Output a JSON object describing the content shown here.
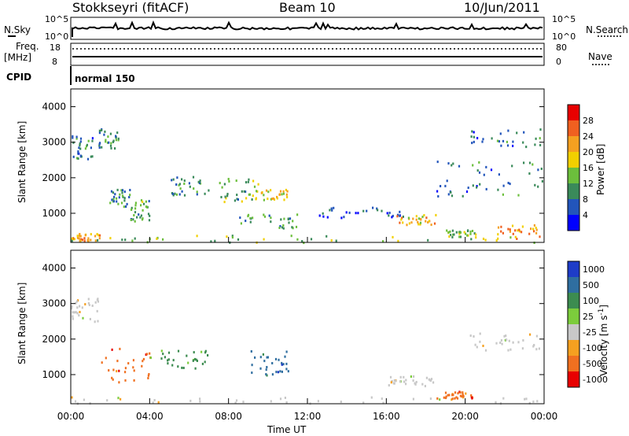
{
  "header": {
    "station": "Stokkseyri (fitACF)",
    "beam": "Beam 10",
    "date": "10/Jun/2011"
  },
  "top_panels": {
    "nsky_label": "N.Sky",
    "nsearch_label": "N.Search",
    "nsky_ticks": [
      "10^5",
      "10^0"
    ],
    "nsky_right_ticks": [
      "10^5",
      "10^0"
    ],
    "freq_label": "Freq.",
    "freq_unit": "[MHz]",
    "freq_ticks": [
      "18",
      "8"
    ],
    "nave_label": "Nave",
    "nave_ticks": [
      "80",
      "0"
    ],
    "cpid_label": "CPID",
    "cpid_value": "normal 150"
  },
  "colors": {
    "power_scale": [
      "#0000ff",
      "#2255bb",
      "#3a8a5a",
      "#6cbf3c",
      "#f2d000",
      "#f5a020",
      "#f06020",
      "#e80000"
    ],
    "velocity_scale": [
      "#1e3cc8",
      "#2f6ea0",
      "#3c8c50",
      "#7ccc3c",
      "#c8c8c8",
      "#f5a020",
      "#f07020",
      "#e80000"
    ]
  },
  "chart_data": [
    {
      "type": "heatmap",
      "title": "Power",
      "ylabel": "Slant Range [km]",
      "ylim": [
        180,
        4500
      ],
      "yticks": [
        "1000",
        "2000",
        "3000",
        "4000"
      ],
      "xlim_hours": [
        0,
        24
      ],
      "colorbar_label": "Power [dB]",
      "colorbar_ticks": [
        "4",
        "8",
        "12",
        "16",
        "20",
        "24",
        "28"
      ],
      "colorbar_range": [
        0,
        32
      ],
      "regions": [
        {
          "t": [
            0.0,
            1.2
          ],
          "r": [
            2500,
            3200
          ],
          "level": 8
        },
        {
          "t": [
            1.4,
            2.4
          ],
          "r": [
            2800,
            3400
          ],
          "level": 10
        },
        {
          "t": [
            0.0,
            24.0
          ],
          "r": [
            200,
            400
          ],
          "level": 14
        },
        {
          "t": [
            0.0,
            1.5
          ],
          "r": [
            250,
            450
          ],
          "level": 22
        },
        {
          "t": [
            1.8,
            3.0
          ],
          "r": [
            1200,
            1700
          ],
          "level": 10
        },
        {
          "t": [
            3.0,
            4.0
          ],
          "r": [
            800,
            1400
          ],
          "level": 12
        },
        {
          "t": [
            5.0,
            7.0
          ],
          "r": [
            1500,
            2100
          ],
          "level": 9
        },
        {
          "t": [
            7.5,
            9.5
          ],
          "r": [
            1300,
            2000
          ],
          "level": 12
        },
        {
          "t": [
            9.0,
            11.0
          ],
          "r": [
            1400,
            1700
          ],
          "level": 18
        },
        {
          "t": [
            8.5,
            11.5
          ],
          "r": [
            600,
            1000
          ],
          "level": 11
        },
        {
          "t": [
            12.5,
            17.0
          ],
          "r": [
            900,
            1200
          ],
          "level": 6
        },
        {
          "t": [
            16.5,
            18.5
          ],
          "r": [
            700,
            1000
          ],
          "level": 20
        },
        {
          "t": [
            18.5,
            24.0
          ],
          "r": [
            1500,
            2500
          ],
          "level": 8
        },
        {
          "t": [
            20.0,
            24.0
          ],
          "r": [
            2900,
            3400
          ],
          "level": 8
        },
        {
          "t": [
            19.0,
            20.5
          ],
          "r": [
            350,
            550
          ],
          "level": 14
        },
        {
          "t": [
            21.5,
            24.0
          ],
          "r": [
            300,
            700
          ],
          "level": 22
        }
      ]
    },
    {
      "type": "heatmap",
      "title": "Velocity",
      "ylabel": "Slant Range [km]",
      "xlabel": "Time UT",
      "ylim": [
        180,
        4500
      ],
      "yticks": [
        "1000",
        "2000",
        "3000",
        "4000"
      ],
      "xticks": [
        "00:00",
        "04:00",
        "08:00",
        "12:00",
        "16:00",
        "20:00",
        "00:00"
      ],
      "xlim_hours": [
        0,
        24
      ],
      "colorbar_label": "Velocity [m s^-1]",
      "colorbar_ticks": [
        "1000",
        "500",
        "100",
        "25",
        "-25",
        "-100",
        "-500",
        "-1000"
      ],
      "regions": [
        {
          "t": [
            0.0,
            1.5
          ],
          "r": [
            2500,
            3200
          ],
          "level": "-25"
        },
        {
          "t": [
            0.0,
            24.0
          ],
          "r": [
            200,
            400
          ],
          "level": "-25"
        },
        {
          "t": [
            1.5,
            4.0
          ],
          "r": [
            800,
            1800
          ],
          "level": "-500"
        },
        {
          "t": [
            4.0,
            7.0
          ],
          "r": [
            1200,
            1700
          ],
          "level": "100"
        },
        {
          "t": [
            9.0,
            11.0
          ],
          "r": [
            1000,
            1700
          ],
          "level": "500"
        },
        {
          "t": [
            16.0,
            18.5
          ],
          "r": [
            700,
            1000
          ],
          "level": "-25"
        },
        {
          "t": [
            18.5,
            20.5
          ],
          "r": [
            350,
            550
          ],
          "level": "-500"
        },
        {
          "t": [
            20.0,
            24.0
          ],
          "r": [
            1700,
            2200
          ],
          "level": "-25"
        }
      ]
    }
  ],
  "xaxis": {
    "ticks": [
      "00:00",
      "04:00",
      "08:00",
      "12:00",
      "16:00",
      "20:00",
      "00:00"
    ],
    "label": "Time UT"
  }
}
